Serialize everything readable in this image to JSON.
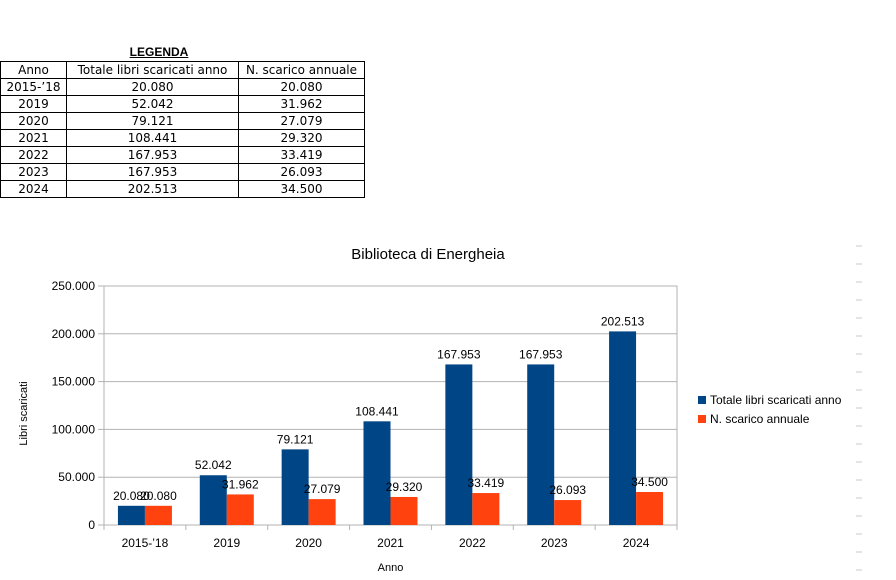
{
  "legend_table": {
    "title": "LEGENDA",
    "headers": [
      "Anno",
      "Totale libri scaricati anno",
      "N. scarico annuale"
    ],
    "rows": [
      [
        "2015-’18",
        "20.080",
        "20.080"
      ],
      [
        "2019",
        "52.042",
        "31.962"
      ],
      [
        "2020",
        "79.121",
        "27.079"
      ],
      [
        "2021",
        "108.441",
        "29.320"
      ],
      [
        "2022",
        "167.953",
        "33.419"
      ],
      [
        "2023",
        "167.953",
        "26.093"
      ],
      [
        "2024",
        "202.513",
        "34.500"
      ]
    ]
  },
  "chart_data": {
    "type": "bar",
    "title": "Biblioteca di Energheia",
    "xlabel": "Anno",
    "ylabel": "Libri scaricati",
    "categories": [
      "2015-’18",
      "2019",
      "2020",
      "2021",
      "2022",
      "2023",
      "2024"
    ],
    "series": [
      {
        "name": "Totale libri scaricati anno",
        "color": "#004586",
        "values": [
          20080,
          52042,
          79121,
          108441,
          167953,
          167953,
          202513
        ],
        "labels": [
          "20.080",
          "52.042",
          "79.121",
          "108.441",
          "167.953",
          "167.953",
          "202.513"
        ]
      },
      {
        "name": "N. scarico annuale",
        "color": "#ff420e",
        "values": [
          20080,
          31962,
          27079,
          29320,
          33419,
          26093,
          34500
        ],
        "labels": [
          "20.080",
          "31.962",
          "27.079",
          "29.320",
          "33.419",
          "26.093",
          "34.500"
        ]
      }
    ],
    "yticks": [
      0,
      50000,
      100000,
      150000,
      200000,
      250000
    ],
    "ytick_labels": [
      "0",
      "50.000",
      "100.000",
      "150.000",
      "200.000",
      "250.000"
    ],
    "ylim": [
      0,
      250000
    ],
    "grid": true,
    "legend_position": "right"
  }
}
